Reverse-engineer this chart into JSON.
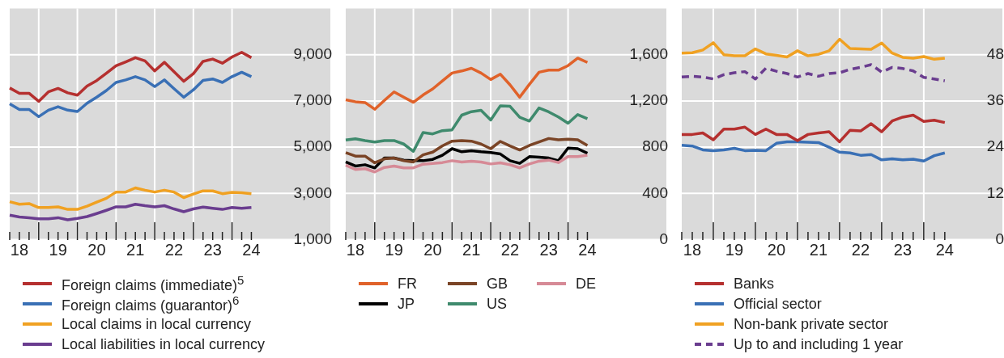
{
  "chart_data": [
    {
      "type": "line",
      "legend": "bottom",
      "grid": true,
      "marker": "none",
      "categories": [
        null,
        "18",
        null,
        null,
        null,
        "19",
        null,
        null,
        null,
        "20",
        null,
        null,
        null,
        "21",
        null,
        null,
        null,
        "22",
        null,
        null,
        null,
        "23",
        null,
        null,
        null,
        "24"
      ],
      "ylim": [
        1000,
        11000
      ],
      "yticks": [
        {
          "value": 1000,
          "label": "1,000"
        },
        {
          "value": 3000,
          "label": "3,000"
        },
        {
          "value": 5000,
          "label": "5,000"
        },
        {
          "value": 7000,
          "label": "7,000"
        },
        {
          "value": 9000,
          "label": "9,000"
        }
      ],
      "series": [
        {
          "name": "Foreign claims (immediate)$^{5}$",
          "color": "#b5302f",
          "values": [
            7560,
            7330,
            7330,
            6980,
            7390,
            7540,
            7350,
            7250,
            7640,
            7880,
            8200,
            8520,
            8690,
            8870,
            8730,
            8300,
            8670,
            8260,
            7850,
            8180,
            8710,
            8810,
            8630,
            8900,
            9100,
            8870
          ]
        },
        {
          "name": "Foreign claims (guarantor)$^{6}$",
          "color": "#3a70b5",
          "values": [
            6870,
            6630,
            6630,
            6320,
            6600,
            6750,
            6600,
            6540,
            6900,
            7160,
            7450,
            7800,
            7910,
            8050,
            7910,
            7620,
            7910,
            7530,
            7160,
            7480,
            7890,
            7950,
            7800,
            8050,
            8240,
            8050
          ]
        },
        {
          "name": "Local claims in local currency",
          "color": "#f0a122",
          "values": [
            2640,
            2530,
            2560,
            2390,
            2390,
            2420,
            2310,
            2310,
            2450,
            2620,
            2790,
            3060,
            3060,
            3240,
            3140,
            3060,
            3140,
            3060,
            2820,
            2970,
            3110,
            3110,
            2990,
            3050,
            3030,
            2990
          ]
        },
        {
          "name": "Local liabilities in local currency",
          "color": "#6a3d8f",
          "values": [
            2060,
            1980,
            1950,
            1900,
            1900,
            1950,
            1860,
            1920,
            2000,
            2130,
            2270,
            2420,
            2420,
            2530,
            2470,
            2420,
            2470,
            2330,
            2210,
            2330,
            2410,
            2360,
            2310,
            2390,
            2360,
            2390
          ]
        }
      ]
    },
    {
      "type": "line",
      "legend": "bottom",
      "grid": true,
      "marker": "none",
      "categories": [
        null,
        "18",
        null,
        null,
        null,
        "19",
        null,
        null,
        null,
        "20",
        null,
        null,
        null,
        "21",
        null,
        null,
        null,
        "22",
        null,
        null,
        null,
        "23",
        null,
        null,
        null,
        "24"
      ],
      "ylim": [
        0,
        2000
      ],
      "yticks": [
        0,
        400,
        800,
        {
          "value": 1200,
          "label": "1,200"
        },
        {
          "value": 1600,
          "label": "1,600"
        }
      ],
      "series": [
        {
          "name": "FR",
          "color": "#e0622a",
          "values": [
            1209,
            1193,
            1186,
            1128,
            1204,
            1278,
            1232,
            1188,
            1251,
            1304,
            1373,
            1441,
            1459,
            1482,
            1441,
            1385,
            1431,
            1339,
            1232,
            1343,
            1448,
            1466,
            1466,
            1505,
            1570,
            1533
          ]
        },
        {
          "name": "GB",
          "color": "#7a4426",
          "values": [
            753,
            723,
            723,
            665,
            699,
            706,
            683,
            672,
            734,
            757,
            811,
            852,
            857,
            852,
            827,
            787,
            850,
            811,
            776,
            815,
            845,
            875,
            864,
            869,
            864,
            815
          ]
        },
        {
          "name": "DE",
          "color": "#d68a96",
          "values": [
            644,
            607,
            614,
            586,
            625,
            637,
            621,
            621,
            653,
            660,
            667,
            683,
            672,
            679,
            672,
            655,
            665,
            648,
            621,
            655,
            679,
            688,
            667,
            718,
            718,
            730
          ]
        },
        {
          "name": "JP",
          "color": "#000000",
          "values": [
            672,
            637,
            648,
            621,
            706,
            706,
            688,
            683,
            683,
            695,
            730,
            787,
            760,
            769,
            760,
            753,
            741,
            683,
            660,
            718,
            713,
            706,
            683,
            792,
            787,
            748
          ]
        },
        {
          "name": "US",
          "color": "#3f8a6d",
          "values": [
            862,
            873,
            857,
            845,
            857,
            857,
            827,
            764,
            926,
            915,
            943,
            950,
            1077,
            1107,
            1119,
            1035,
            1158,
            1153,
            1058,
            1026,
            1139,
            1105,
            1061,
            1007,
            1082,
            1047
          ]
        }
      ]
    },
    {
      "type": "line",
      "legend": "bottom",
      "grid": true,
      "marker": "none",
      "categories": [
        null,
        "18",
        null,
        null,
        null,
        "19",
        null,
        null,
        null,
        "20",
        null,
        null,
        null,
        "21",
        null,
        null,
        null,
        "22",
        null,
        null,
        null,
        "23",
        null,
        null,
        null,
        "24"
      ],
      "ylim": [
        0,
        60
      ],
      "yticks": [
        0,
        12,
        24,
        36,
        48
      ],
      "series": [
        {
          "name": "Banks",
          "color": "#b5302f",
          "values": [
            27.3,
            27.3,
            27.7,
            25.9,
            28.7,
            28.7,
            29.2,
            27.3,
            28.7,
            27.3,
            27.3,
            25.7,
            27.3,
            27.7,
            28.0,
            25.4,
            28.4,
            28.2,
            30.1,
            28.0,
            30.8,
            31.8,
            32.3,
            30.7,
            31.0,
            30.4
          ]
        },
        {
          "name": "Official sector",
          "color": "#3a70b5",
          "values": [
            24.5,
            24.3,
            23.3,
            23.1,
            23.3,
            23.7,
            23.1,
            23.2,
            23.1,
            25.0,
            25.4,
            25.4,
            25.3,
            25.2,
            24.0,
            22.7,
            22.5,
            21.9,
            22.1,
            20.7,
            21.0,
            20.7,
            20.9,
            20.4,
            21.8,
            22.5
          ]
        },
        {
          "name": "Non-bank private sector",
          "color": "#f0a122",
          "values": [
            48.4,
            48.5,
            49.2,
            51.1,
            48.0,
            47.7,
            47.7,
            49.5,
            48.2,
            47.8,
            47.4,
            49.0,
            47.7,
            48.1,
            49.0,
            52.0,
            49.6,
            49.5,
            49.4,
            51.0,
            48.4,
            47.3,
            47.1,
            47.5,
            46.8,
            47.1
          ]
        },
        {
          "name": "Up to and including 1 year",
          "color": "#6a3d8f",
          "line_style": "dashed",
          "values": [
            42.2,
            42.4,
            42.2,
            41.7,
            42.8,
            43.3,
            43.6,
            41.7,
            44.5,
            43.7,
            43.1,
            42.2,
            43.1,
            42.4,
            43.1,
            43.3,
            44.2,
            44.7,
            45.4,
            43.5,
            44.7,
            44.4,
            43.8,
            42.1,
            41.7,
            41.2
          ]
        }
      ]
    }
  ]
}
